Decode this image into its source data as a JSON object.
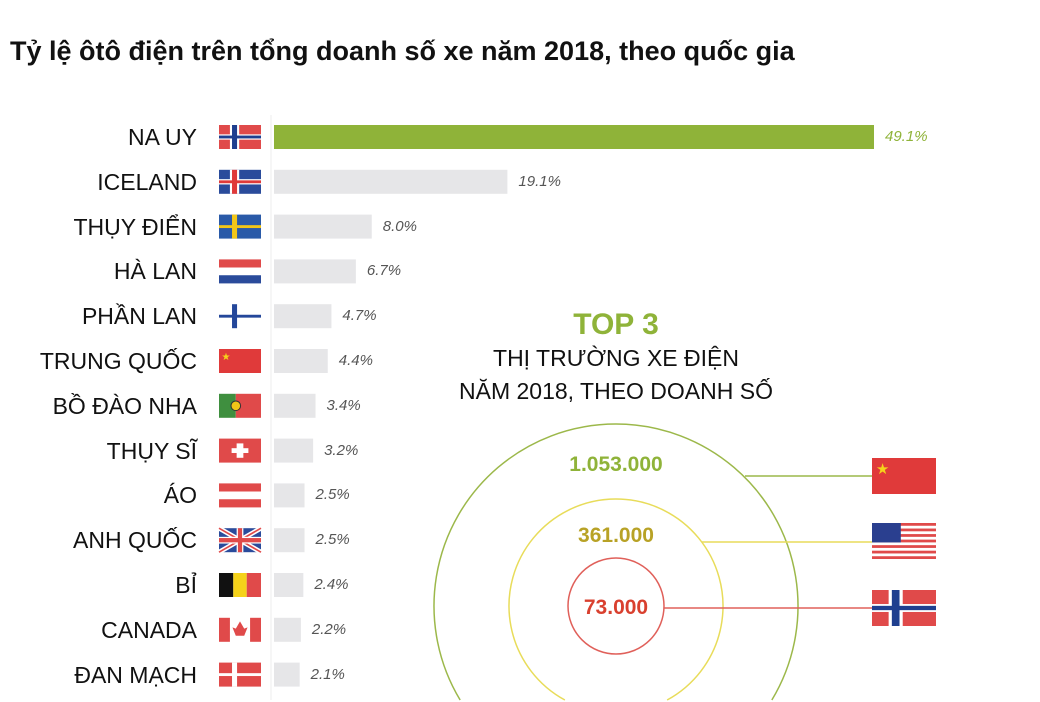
{
  "title": "Tỷ lệ ôtô điện trên tổng doanh số xe năm 2018, theo quốc gia",
  "colors": {
    "highlight": "#8fb339",
    "bar": "#e6e6e8",
    "ring_outer": "#9cb84a",
    "ring_middle": "#e8dc5a",
    "ring_inner": "#e0605a",
    "text_middle": "#b8a226",
    "text_inner": "#d9402f"
  },
  "chart_data": [
    {
      "type": "bar",
      "orientation": "horizontal",
      "title": "Tỷ lệ ôtô điện trên tổng doanh số xe năm 2018, theo quốc gia",
      "unit": "%",
      "categories": [
        "NA UY",
        "ICELAND",
        "THỤY ĐIỂN",
        "HÀ LAN",
        "PHẦN LAN",
        "TRUNG QUỐC",
        "BỒ ĐÀO NHA",
        "THỤY SĨ",
        "ÁO",
        "ANH QUỐC",
        "BỈ",
        "CANADA",
        "ĐAN MẠCH"
      ],
      "flags": [
        "norway",
        "iceland",
        "sweden",
        "netherlands",
        "finland",
        "china",
        "portugal",
        "switzerland",
        "austria",
        "uk",
        "belgium",
        "canada",
        "denmark"
      ],
      "values": [
        49.1,
        19.1,
        8.0,
        6.7,
        4.7,
        4.4,
        3.4,
        3.2,
        2.5,
        2.5,
        2.4,
        2.2,
        2.1
      ],
      "value_labels": [
        "49.1%",
        "19.1%",
        "8.0%",
        "6.7%",
        "4.7%",
        "4.4%",
        "3.4%",
        "3.2%",
        "2.5%",
        "2.5%",
        "2.4%",
        "2.2%",
        "2.1%"
      ],
      "highlight_index": 0
    },
    {
      "type": "concentric-circles",
      "heading": "TOP 3",
      "subtitle_line1": "THỊ TRƯỜNG XE ĐIỆN",
      "subtitle_line2": "NĂM 2018, THEO DOANH SỐ",
      "items": [
        {
          "flag": "china",
          "value": 1053000,
          "label": "1.053.000"
        },
        {
          "flag": "usa",
          "value": 361000,
          "label": "361.000"
        },
        {
          "flag": "norway",
          "value": 73000,
          "label": "73.000"
        }
      ]
    }
  ]
}
